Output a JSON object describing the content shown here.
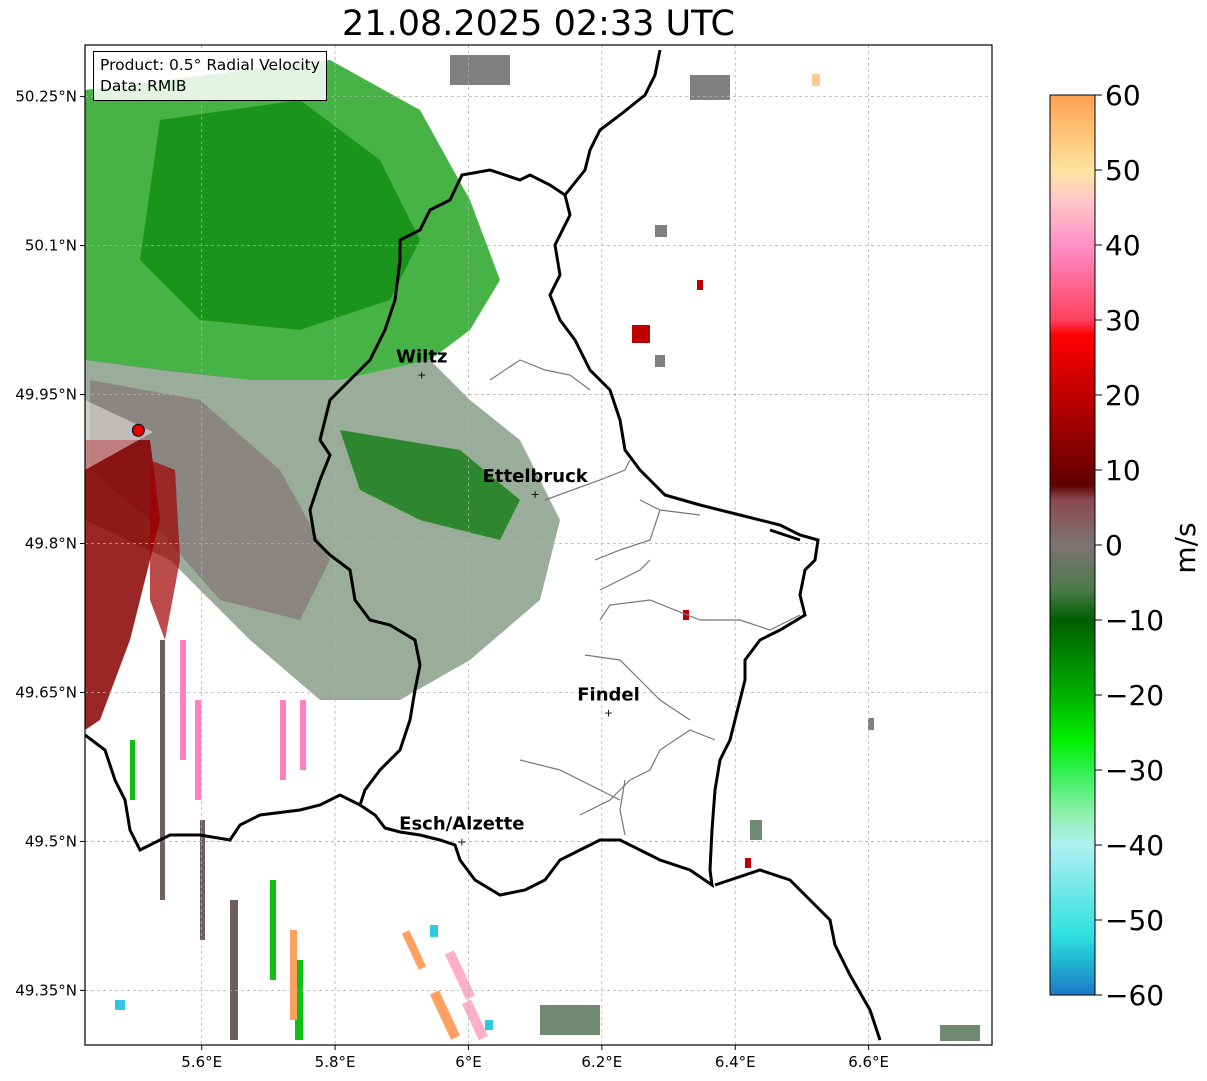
{
  "title": "21.08.2025 02:33 UTC",
  "info_box": {
    "product": "Product: 0.5° Radial Velocity",
    "data": "Data: RMIB"
  },
  "map": {
    "lon_range": [
      5.425,
      6.785
    ],
    "lat_range": [
      49.295,
      50.302
    ],
    "lon_ticks": [
      {
        "value": 5.6,
        "label": "5.6°E"
      },
      {
        "value": 5.8,
        "label": "5.8°E"
      },
      {
        "value": 6.0,
        "label": "6°E"
      },
      {
        "value": 6.2,
        "label": "6.2°E"
      },
      {
        "value": 6.4,
        "label": "6.4°E"
      },
      {
        "value": 6.6,
        "label": "6.6°E"
      }
    ],
    "lat_ticks": [
      {
        "value": 49.35,
        "label": "49.35°N"
      },
      {
        "value": 49.5,
        "label": "49.5°N"
      },
      {
        "value": 49.65,
        "label": "49.65°N"
      },
      {
        "value": 49.8,
        "label": "49.8°N"
      },
      {
        "value": 49.95,
        "label": "49.95°N"
      },
      {
        "value": 50.1,
        "label": "50.1°N"
      },
      {
        "value": 50.25,
        "label": "50.25°N"
      }
    ],
    "gridlines": true,
    "radar_site": {
      "lon": 5.505,
      "lat": 49.914
    },
    "cities": [
      {
        "name": "Wiltz",
        "lon": 5.93,
        "lat": 49.97
      },
      {
        "name": "Ettelbruck",
        "lon": 6.1,
        "lat": 49.85
      },
      {
        "name": "Findel",
        "lon": 6.21,
        "lat": 49.63
      },
      {
        "name": "Esch/Alzette",
        "lon": 5.99,
        "lat": 49.5
      }
    ]
  },
  "colorbar": {
    "label": "m/s",
    "min": -60,
    "max": 60,
    "ticks": [
      {
        "value": 60,
        "label": "60"
      },
      {
        "value": 50,
        "label": "50"
      },
      {
        "value": 40,
        "label": "40"
      },
      {
        "value": 30,
        "label": "30"
      },
      {
        "value": 20,
        "label": "20"
      },
      {
        "value": 10,
        "label": "10"
      },
      {
        "value": 0,
        "label": "0"
      },
      {
        "value": -10,
        "label": "−10"
      },
      {
        "value": -20,
        "label": "−20"
      },
      {
        "value": -30,
        "label": "−30"
      },
      {
        "value": -40,
        "label": "−40"
      },
      {
        "value": -50,
        "label": "−50"
      },
      {
        "value": -60,
        "label": "−60"
      }
    ],
    "color_stops": [
      {
        "value": -60,
        "color": "#1f78c8"
      },
      {
        "value": -56,
        "color": "#20b0d0"
      },
      {
        "value": -52,
        "color": "#30e0e0"
      },
      {
        "value": -40,
        "color": "#b0f0f0"
      },
      {
        "value": -36,
        "color": "#90f0b0"
      },
      {
        "value": -30,
        "color": "#30f050"
      },
      {
        "value": -26,
        "color": "#00f000"
      },
      {
        "value": -20,
        "color": "#00b000"
      },
      {
        "value": -10,
        "color": "#005f00"
      },
      {
        "value": -6,
        "color": "#4a7a4a"
      },
      {
        "value": 0,
        "color": "#7e7373"
      },
      {
        "value": 6,
        "color": "#8a4a50"
      },
      {
        "value": 8,
        "color": "#600000"
      },
      {
        "value": 20,
        "color": "#c00000"
      },
      {
        "value": 28,
        "color": "#ff0000"
      },
      {
        "value": 30,
        "color": "#ff4060"
      },
      {
        "value": 40,
        "color": "#ff90c8"
      },
      {
        "value": 46,
        "color": "#ffc8c8"
      },
      {
        "value": 50,
        "color": "#ffe4a0"
      },
      {
        "value": 60,
        "color": "#ffa050"
      }
    ]
  }
}
